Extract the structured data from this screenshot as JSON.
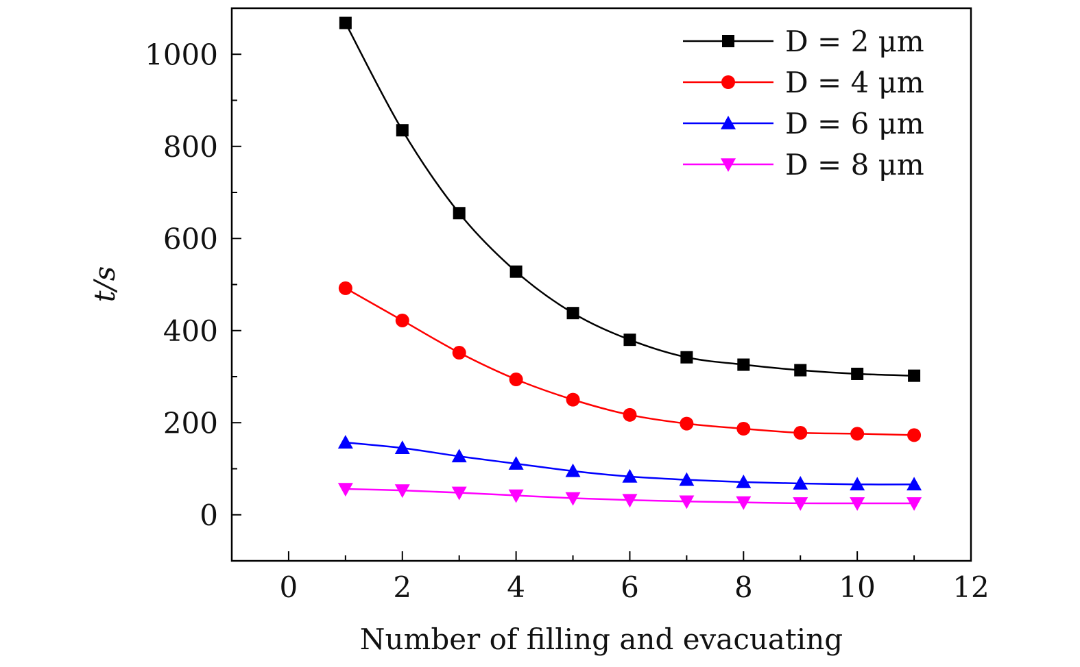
{
  "chart_data": {
    "type": "line",
    "xlabel": "Number of filling and evacuating",
    "ylabel": "t/s",
    "xlim": [
      -1,
      12
    ],
    "ylim": [
      -100,
      1100
    ],
    "x_ticks": [
      0,
      2,
      4,
      6,
      8,
      10,
      12
    ],
    "y_ticks": [
      0,
      200,
      400,
      600,
      800,
      1000
    ],
    "grid": false,
    "legend_position": "top-right",
    "x": [
      1,
      2,
      3,
      4,
      5,
      6,
      7,
      8,
      9,
      10,
      11
    ],
    "series": [
      {
        "name": "D = 2 μm",
        "color": "#000000",
        "marker": "square",
        "values": [
          1068,
          835,
          655,
          528,
          438,
          380,
          342,
          326,
          314,
          306,
          302
        ]
      },
      {
        "name": "D = 4 μm",
        "color": "#ff0000",
        "marker": "circle",
        "values": [
          492,
          422,
          352,
          294,
          250,
          217,
          198,
          187,
          178,
          176,
          173
        ]
      },
      {
        "name": "D = 6 μm",
        "color": "#0000ff",
        "marker": "triangle-up",
        "values": [
          157,
          145,
          127,
          111,
          95,
          83,
          76,
          71,
          68,
          66,
          66
        ]
      },
      {
        "name": "D = 8 μm",
        "color": "#ff00ff",
        "marker": "triangle-down",
        "values": [
          56,
          53,
          48,
          42,
          36,
          32,
          29,
          27,
          25,
          25,
          25
        ]
      }
    ]
  }
}
